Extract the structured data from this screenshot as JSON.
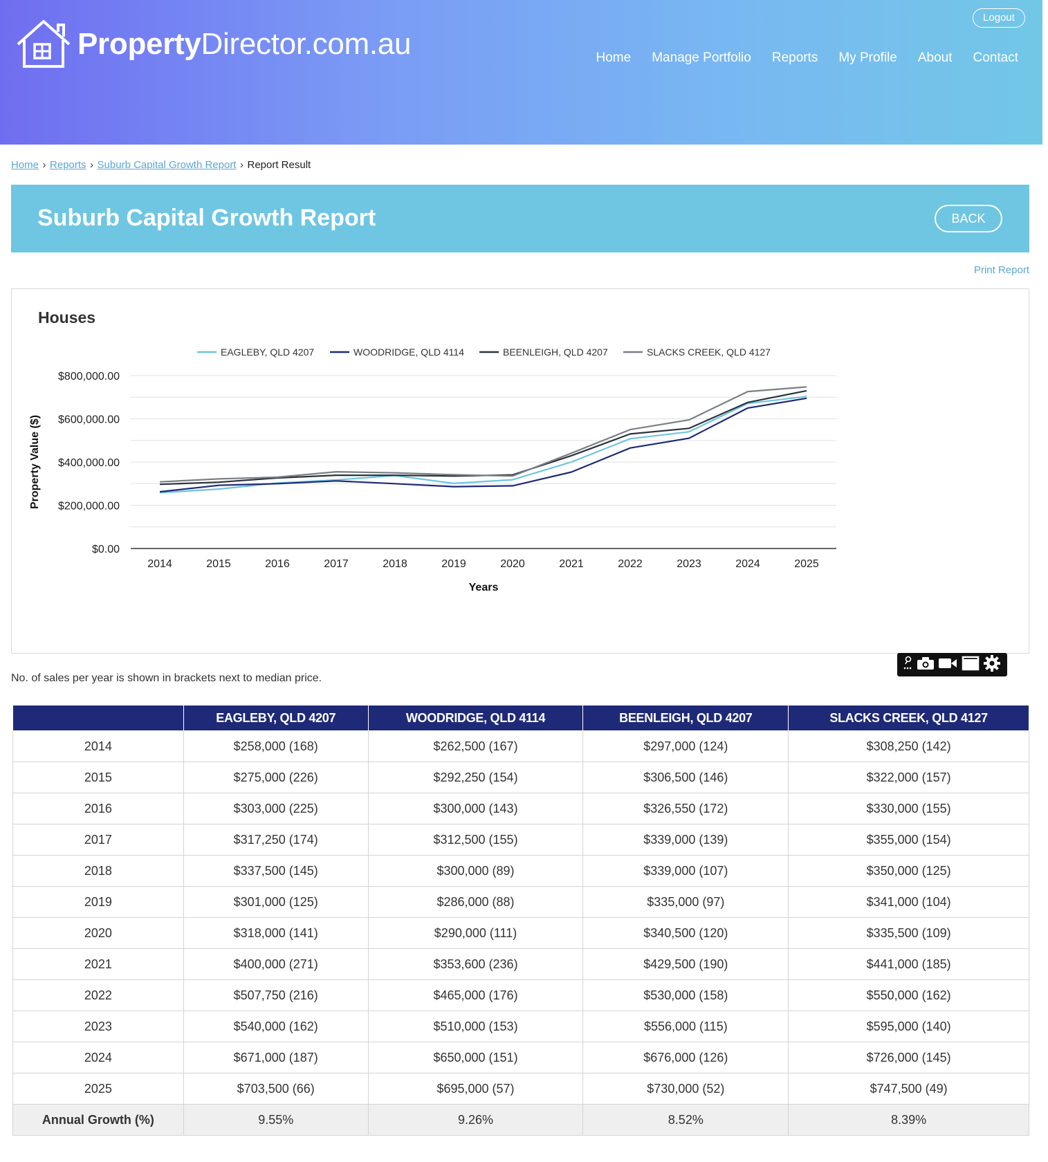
{
  "header": {
    "logo_bold": "Property",
    "logo_rest": "Director.com.au",
    "logout_label": "Logout",
    "nav": [
      "Home",
      "Manage Portfolio",
      "Reports",
      "My Profile",
      "About",
      "Contact"
    ]
  },
  "breadcrumb": {
    "items": [
      "Home",
      "Reports",
      "Suburb Capital Growth Report"
    ],
    "current": "Report Result"
  },
  "page": {
    "title": "Suburb Capital Growth Report",
    "back_label": "BACK",
    "print_label": "Print Report",
    "note": "No. of sales per year is shown in brackets next to median price."
  },
  "chart_data": {
    "type": "line",
    "title": "Houses",
    "xlabel": "Years",
    "ylabel": "Property Value ($)",
    "ylim": [
      0,
      800000
    ],
    "yticks": [
      "$800,000.00",
      "$600,000.00",
      "$400,000.00",
      "$200,000.00",
      "$0.00"
    ],
    "grid": true,
    "legend": "top",
    "x": [
      "2014",
      "2015",
      "2016",
      "2017",
      "2018",
      "2019",
      "2020",
      "2021",
      "2022",
      "2023",
      "2024",
      "2025"
    ],
    "series": [
      {
        "name": "EAGLEBY, QLD 4207",
        "color": "#6cc5e0",
        "values": [
          258000,
          275000,
          303000,
          317250,
          337500,
          301000,
          318000,
          400000,
          507750,
          540000,
          671000,
          703500
        ]
      },
      {
        "name": "WOODRIDGE, QLD 4114",
        "color": "#1e2a78",
        "values": [
          262500,
          292250,
          300000,
          312500,
          300000,
          286000,
          290000,
          353600,
          465000,
          510000,
          650000,
          695000
        ]
      },
      {
        "name": "BEENLEIGH, QLD 4207",
        "color": "#2b3340",
        "values": [
          297000,
          306500,
          326550,
          339000,
          339000,
          335000,
          340500,
          429500,
          530000,
          556000,
          676000,
          730000
        ]
      },
      {
        "name": "SLACKS CREEK, QLD 4127",
        "color": "#7a7f84",
        "values": [
          308250,
          322000,
          330000,
          355000,
          350000,
          341000,
          335500,
          441000,
          550000,
          595000,
          726000,
          747500
        ]
      }
    ]
  },
  "table": {
    "headers": [
      "",
      "EAGLEBY, QLD 4207",
      "WOODRIDGE, QLD 4114",
      "BEENLEIGH, QLD 4207",
      "SLACKS CREEK, QLD 4127"
    ],
    "rows": [
      [
        "2014",
        "$258,000 (168)",
        "$262,500 (167)",
        "$297,000 (124)",
        "$308,250 (142)"
      ],
      [
        "2015",
        "$275,000 (226)",
        "$292,250 (154)",
        "$306,500 (146)",
        "$322,000 (157)"
      ],
      [
        "2016",
        "$303,000 (225)",
        "$300,000 (143)",
        "$326,550 (172)",
        "$330,000 (155)"
      ],
      [
        "2017",
        "$317,250 (174)",
        "$312,500 (155)",
        "$339,000 (139)",
        "$355,000 (154)"
      ],
      [
        "2018",
        "$337,500 (145)",
        "$300,000 (89)",
        "$339,000 (107)",
        "$350,000 (125)"
      ],
      [
        "2019",
        "$301,000 (125)",
        "$286,000 (88)",
        "$335,000 (97)",
        "$341,000 (104)"
      ],
      [
        "2020",
        "$318,000 (141)",
        "$290,000 (111)",
        "$340,500 (120)",
        "$335,500 (109)"
      ],
      [
        "2021",
        "$400,000 (271)",
        "$353,600 (236)",
        "$429,500 (190)",
        "$441,000 (185)"
      ],
      [
        "2022",
        "$507,750 (216)",
        "$465,000 (176)",
        "$530,000 (158)",
        "$550,000 (162)"
      ],
      [
        "2023",
        "$540,000 (162)",
        "$510,000 (153)",
        "$556,000 (115)",
        "$595,000 (140)"
      ],
      [
        "2024",
        "$671,000 (187)",
        "$650,000 (151)",
        "$676,000 (126)",
        "$726,000 (145)"
      ],
      [
        "2025",
        "$703,500 (66)",
        "$695,000 (57)",
        "$730,000 (52)",
        "$747,500 (49)"
      ]
    ],
    "growth": [
      "Annual Growth (%)",
      "9.55%",
      "9.26%",
      "8.52%",
      "8.39%"
    ]
  },
  "toolbar": {
    "icons": [
      "pin-icon",
      "camera-icon",
      "video-icon",
      "window-icon",
      "gear-icon"
    ]
  }
}
